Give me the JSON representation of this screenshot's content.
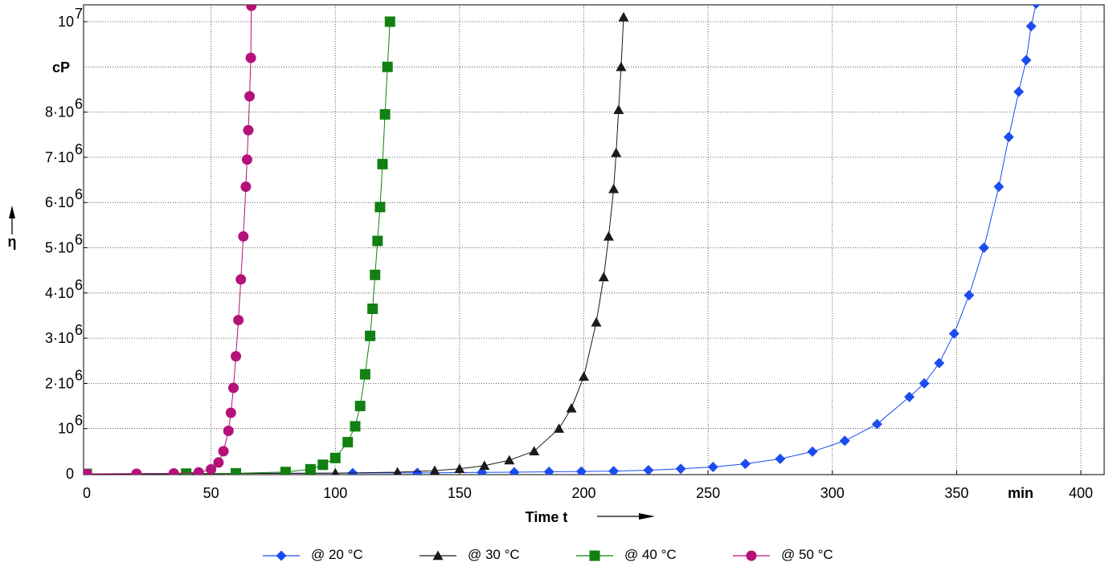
{
  "chart_data": {
    "type": "scatter",
    "title": "",
    "xlabel": "Time t",
    "xunit": "min",
    "ylabel": "η",
    "yunit": "cP",
    "xlim": [
      0,
      410
    ],
    "ylim": [
      0,
      10500000
    ],
    "grid": true,
    "legend_position": "bottom",
    "x_ticks": [
      0,
      50,
      100,
      150,
      200,
      250,
      300,
      350,
      400
    ],
    "y_ticks": [
      {
        "value": 0,
        "mantissa": "0",
        "exp": ""
      },
      {
        "value": 1000000,
        "mantissa": "10",
        "exp": "6"
      },
      {
        "value": 2000000,
        "mantissa": "2·10",
        "exp": "6"
      },
      {
        "value": 3000000,
        "mantissa": "3·10",
        "exp": "6"
      },
      {
        "value": 4000000,
        "mantissa": "4·10",
        "exp": "6"
      },
      {
        "value": 5000000,
        "mantissa": "5·10",
        "exp": "6"
      },
      {
        "value": 6000000,
        "mantissa": "6·10",
        "exp": "6"
      },
      {
        "value": 7000000,
        "mantissa": "7·10",
        "exp": "6"
      },
      {
        "value": 8000000,
        "mantissa": "8·10",
        "exp": "6"
      },
      {
        "value": 10000000,
        "mantissa": "10",
        "exp": "7"
      }
    ],
    "series": [
      {
        "name": "@ 20 °C",
        "color": "#1a4cf0",
        "marker": "diamond",
        "x": [
          0,
          40,
          80,
          107,
          133,
          159,
          172,
          186,
          199,
          212,
          226,
          239,
          252,
          265,
          279,
          292,
          305,
          318,
          331,
          337,
          343,
          349,
          355,
          361,
          367,
          371,
          375,
          378,
          380,
          382,
          383
        ],
        "y": [
          0,
          5000,
          10000,
          15000,
          20000,
          30000,
          35000,
          45000,
          50000,
          60000,
          80000,
          110000,
          150000,
          220000,
          330000,
          490000,
          730000,
          1100000,
          1700000,
          2000000,
          2450000,
          3100000,
          3950000,
          5000000,
          6350000,
          7450000,
          8450000,
          9150000,
          9900000,
          10400000,
          10500000
        ]
      },
      {
        "name": "@ 30 °C",
        "color": "#1a1a1a",
        "marker": "triangle",
        "x": [
          0,
          50,
          100,
          125,
          140,
          150,
          160,
          170,
          180,
          190,
          195,
          200,
          205,
          208,
          210,
          212,
          213,
          214,
          215,
          216
        ],
        "y": [
          0,
          5000,
          15000,
          35000,
          70000,
          110000,
          180000,
          300000,
          500000,
          1000000,
          1450000,
          2150000,
          3350000,
          4350000,
          5250000,
          6300000,
          7100000,
          8050000,
          9000000,
          10100000
        ]
      },
      {
        "name": "@ 40 °C",
        "color": "#128012",
        "marker": "square",
        "x": [
          0,
          40,
          60,
          80,
          90,
          95,
          100,
          105,
          108,
          110,
          112,
          114,
          115,
          116,
          117,
          118,
          119,
          120,
          121,
          122
        ],
        "y": [
          0,
          5000,
          12000,
          40000,
          100000,
          200000,
          350000,
          700000,
          1050000,
          1500000,
          2200000,
          3050000,
          3650000,
          4400000,
          5150000,
          5900000,
          6850000,
          7950000,
          9000000,
          10000000
        ]
      },
      {
        "name": "@ 50 °C",
        "color": "#b5117a",
        "marker": "circle",
        "x": [
          0,
          20,
          35,
          45,
          50,
          53,
          55,
          57,
          58,
          59,
          60,
          61,
          62,
          63,
          64,
          64.5,
          65,
          65.5,
          66,
          66.2
        ],
        "y": [
          0,
          3000,
          8000,
          30000,
          100000,
          250000,
          500000,
          950000,
          1350000,
          1900000,
          2600000,
          3400000,
          4300000,
          5250000,
          6350000,
          6950000,
          7600000,
          8350000,
          9200000,
          10350000
        ]
      }
    ]
  }
}
